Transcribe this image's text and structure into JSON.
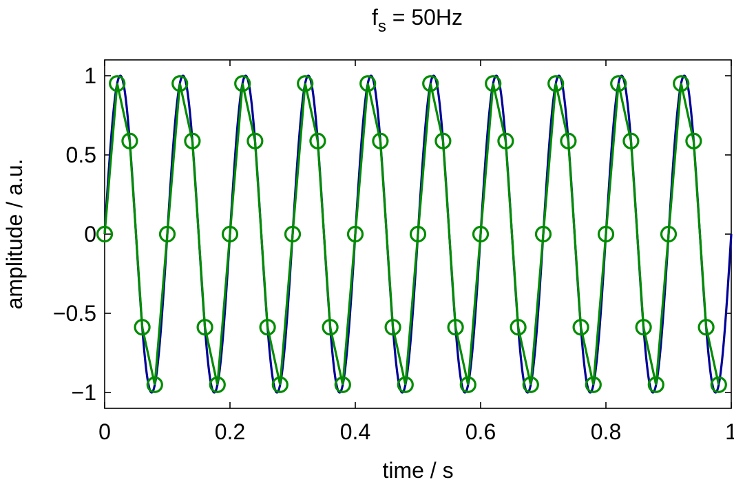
{
  "chart_data": {
    "type": "line",
    "title": {
      "main": "f",
      "subscript": "s",
      "rest": " = 50Hz"
    },
    "xlabel": "time / s",
    "ylabel": "amplitude / a.u.",
    "xlim": [
      0,
      1
    ],
    "ylim": [
      -1.1,
      1.1
    ],
    "x_ticks": [
      0,
      0.2,
      0.4,
      0.6,
      0.8,
      1
    ],
    "x_tick_labels": [
      "0",
      "0.2",
      "0.4",
      "0.6",
      "0.8",
      "1"
    ],
    "y_ticks": [
      1,
      0.5,
      0,
      -0.5,
      -1
    ],
    "y_tick_labels": [
      "1",
      "0.5",
      "0",
      "−0.5",
      "−1"
    ],
    "grid": false,
    "legend": "none",
    "series": [
      {
        "style": "continuous-line",
        "color": "#000099",
        "function": "sin",
        "frequency_hz": 10,
        "amplitude": 1
      },
      {
        "style": "line-with-circle-markers",
        "color": "#008c00",
        "sample_rate_hz": 50,
        "x": [
          0,
          0.02,
          0.04,
          0.06,
          0.08,
          0.1,
          0.12,
          0.14,
          0.16,
          0.18,
          0.2,
          0.22,
          0.24,
          0.26,
          0.28,
          0.3,
          0.32,
          0.34,
          0.36,
          0.38,
          0.4,
          0.42,
          0.44,
          0.46,
          0.48,
          0.5,
          0.52,
          0.54,
          0.56,
          0.58,
          0.6,
          0.62,
          0.64,
          0.66,
          0.68,
          0.7,
          0.72,
          0.74,
          0.76,
          0.78,
          0.8,
          0.82,
          0.84,
          0.86,
          0.88,
          0.9,
          0.92,
          0.94,
          0.96,
          0.98
        ],
        "y": [
          0,
          0.951,
          0.588,
          -0.588,
          -0.951,
          0,
          0.951,
          0.588,
          -0.588,
          -0.951,
          0,
          0.951,
          0.588,
          -0.588,
          -0.951,
          0,
          0.951,
          0.588,
          -0.588,
          -0.951,
          0,
          0.951,
          0.588,
          -0.588,
          -0.951,
          0,
          0.951,
          0.588,
          -0.588,
          -0.951,
          0,
          0.951,
          0.588,
          -0.588,
          -0.951,
          0,
          0.951,
          0.588,
          -0.588,
          -0.951,
          0,
          0.951,
          0.588,
          -0.588,
          -0.951,
          0,
          0.951,
          0.588,
          -0.588,
          -0.951
        ]
      }
    ]
  }
}
